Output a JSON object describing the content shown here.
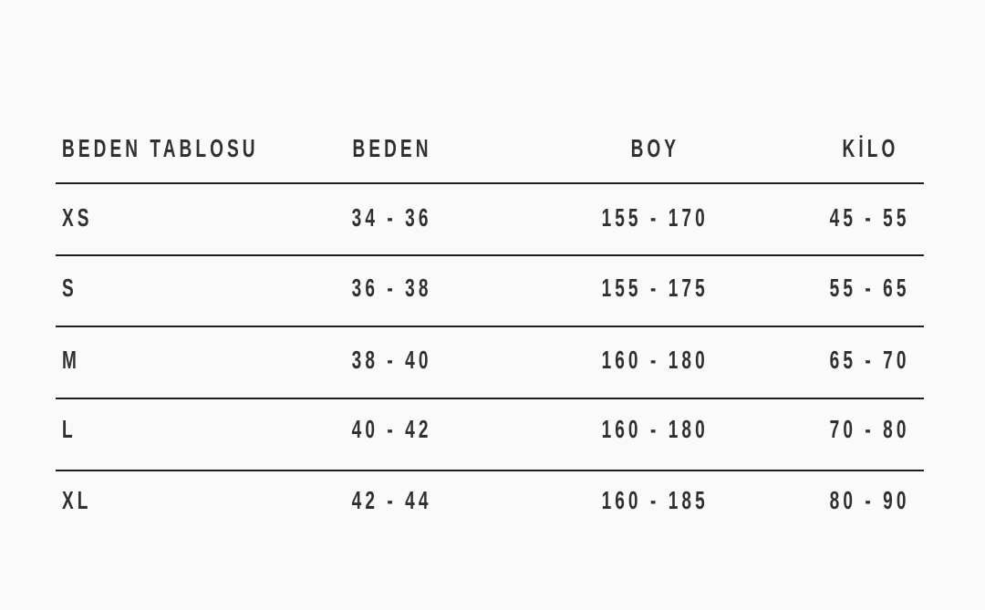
{
  "headers": [
    "BEDEN TABLOSU",
    "BEDEN",
    "BOY",
    "KİLO"
  ],
  "rows": [
    [
      "XS",
      "34 - 36",
      "155 - 170",
      "45 - 55"
    ],
    [
      "S",
      "36 - 38",
      "155 - 175",
      "55 - 65"
    ],
    [
      "M",
      "38 - 40",
      "160 - 180",
      "65 - 70"
    ],
    [
      "L",
      "40 - 42",
      "160 - 180",
      "70 - 80"
    ],
    [
      "XL",
      "42 - 44",
      "160 - 185",
      "80 - 90"
    ]
  ]
}
